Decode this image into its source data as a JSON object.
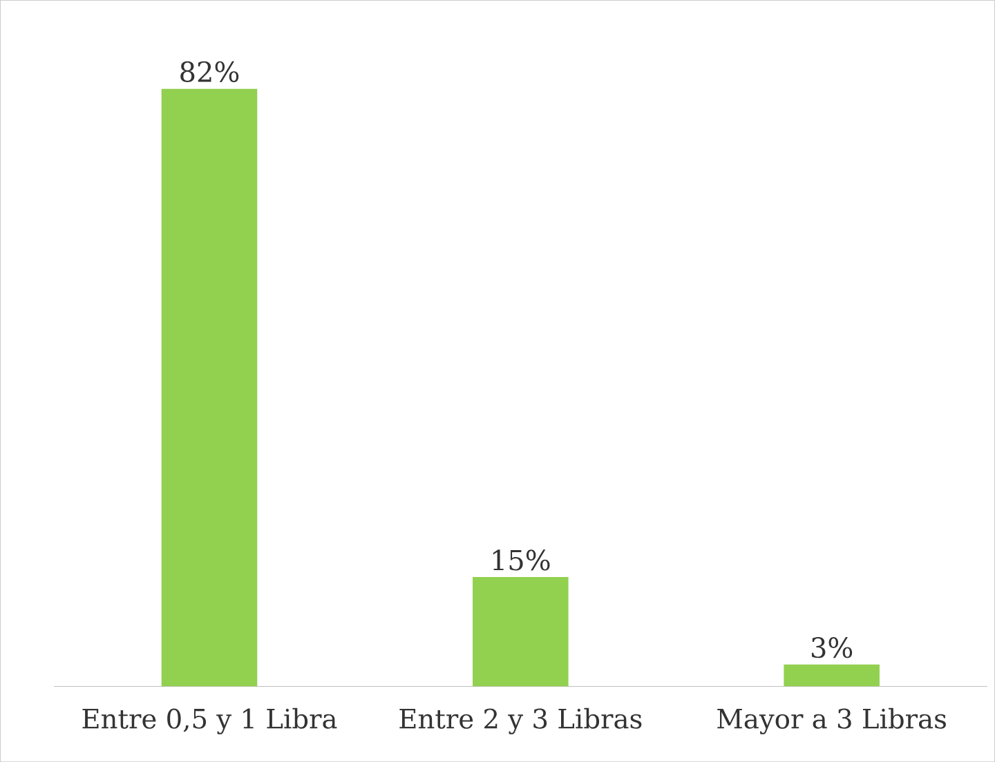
{
  "chart_data": {
    "type": "bar",
    "categories": [
      "Entre 0,5 y 1 Libra",
      "Entre 2 y 3 Libras",
      "Mayor a 3 Libras"
    ],
    "values": [
      82,
      15,
      3
    ],
    "value_labels": [
      "82%",
      "15%",
      "3%"
    ],
    "color": "#92d050"
  }
}
